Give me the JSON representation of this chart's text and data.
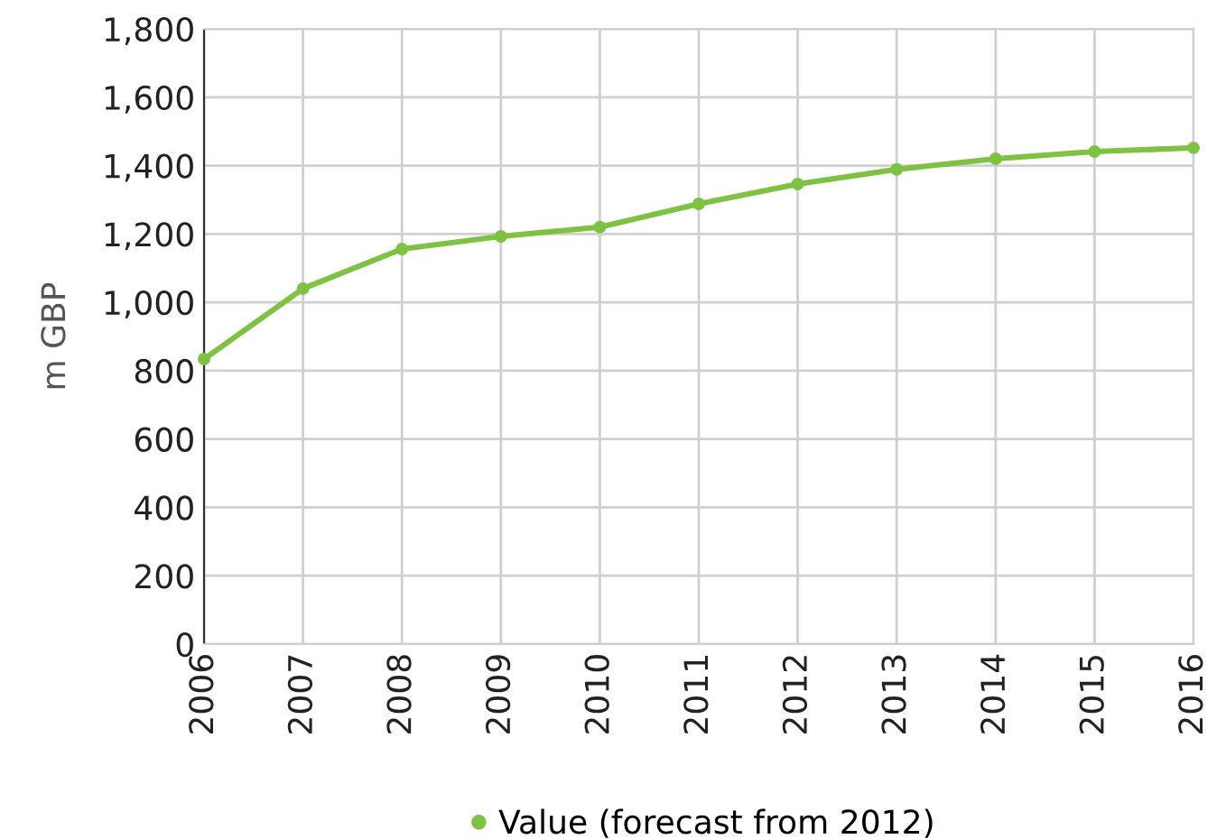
{
  "chart_data": {
    "type": "line",
    "ylabel": "m GBP",
    "x": [
      2006,
      2007,
      2008,
      2009,
      2010,
      2011,
      2012,
      2013,
      2014,
      2015,
      2016
    ],
    "series": [
      {
        "name": "Value (forecast from 2012)",
        "color": "#7dc242",
        "values": [
          834,
          1040,
          1156,
          1193,
          1220,
          1288,
          1346,
          1389,
          1420,
          1441,
          1452
        ]
      }
    ],
    "xlim": [
      2006,
      2016
    ],
    "xticks": [
      2006,
      2007,
      2008,
      2009,
      2010,
      2011,
      2012,
      2013,
      2014,
      2015,
      2016
    ],
    "ylim": [
      0,
      1800
    ],
    "yticks": [
      {
        "value": 0,
        "label": "0"
      },
      {
        "value": 200,
        "label": "200"
      },
      {
        "value": 400,
        "label": "400"
      },
      {
        "value": 600,
        "label": "600"
      },
      {
        "value": 800,
        "label": "800"
      },
      {
        "value": 1000,
        "label": "1,000"
      },
      {
        "value": 1200,
        "label": "1,200"
      },
      {
        "value": 1400,
        "label": "1,400"
      },
      {
        "value": 1600,
        "label": "1,600"
      },
      {
        "value": 1800,
        "label": "1,800"
      }
    ],
    "grid": true,
    "legend": "bottom",
    "marker": "circle",
    "line_style": "solid"
  }
}
